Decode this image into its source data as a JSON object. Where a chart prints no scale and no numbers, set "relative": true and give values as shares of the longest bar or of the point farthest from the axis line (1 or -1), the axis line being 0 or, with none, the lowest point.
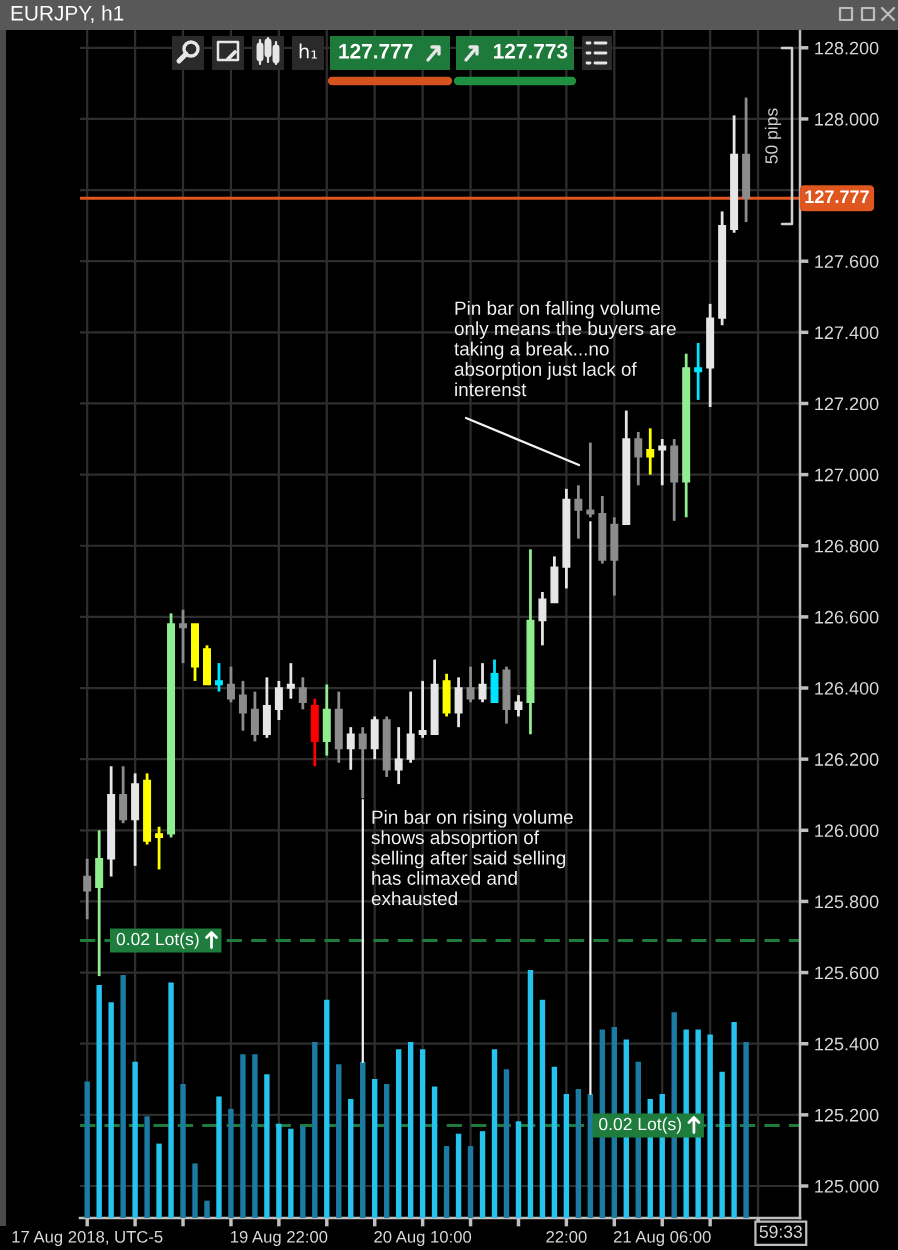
{
  "chart_data": [
    {
      "type": "candlestick",
      "title": "EURJPY, h1",
      "categories": [
        "17 Aug 2018, UTC-5",
        null,
        null,
        null,
        null,
        null,
        null,
        null,
        null,
        null,
        null,
        null,
        null,
        null,
        null,
        null,
        "19 Aug 22:00",
        null,
        null,
        null,
        null,
        null,
        null,
        null,
        null,
        null,
        null,
        null,
        "20 Aug 10:00",
        null,
        null,
        null,
        null,
        null,
        null,
        null,
        null,
        null,
        null,
        null,
        "22:00",
        null,
        null,
        null,
        null,
        null,
        null,
        null,
        "21 Aug 06:00",
        null,
        null,
        null,
        null,
        null,
        null,
        null
      ],
      "ohlc": [
        [
          125.87,
          125.92,
          125.75,
          125.83
        ],
        [
          125.84,
          126.0,
          125.59,
          125.92
        ],
        [
          125.92,
          126.18,
          125.87,
          126.1
        ],
        [
          126.1,
          126.18,
          126.02,
          126.03
        ],
        [
          126.03,
          126.16,
          125.9,
          126.13
        ],
        [
          126.14,
          126.16,
          125.96,
          125.97
        ],
        [
          125.98,
          126.01,
          125.89,
          125.99
        ],
        [
          125.99,
          126.61,
          125.98,
          126.58
        ],
        [
          126.58,
          126.62,
          126.47,
          126.57
        ],
        [
          126.58,
          126.58,
          126.42,
          126.46
        ],
        [
          126.51,
          126.52,
          126.41,
          126.41
        ],
        [
          126.41,
          126.47,
          126.39,
          126.42
        ],
        [
          126.41,
          126.46,
          126.36,
          126.37
        ],
        [
          126.38,
          126.42,
          126.28,
          126.33
        ],
        [
          126.34,
          126.39,
          126.25,
          126.27
        ],
        [
          126.27,
          126.43,
          126.26,
          126.35
        ],
        [
          126.34,
          126.42,
          126.31,
          126.4
        ],
        [
          126.4,
          126.47,
          126.37,
          126.41
        ],
        [
          126.4,
          126.43,
          126.34,
          126.36
        ],
        [
          126.35,
          126.37,
          126.18,
          126.25
        ],
        [
          126.25,
          126.41,
          126.21,
          126.34
        ],
        [
          126.34,
          126.39,
          126.19,
          126.23
        ],
        [
          126.23,
          126.29,
          126.17,
          126.27
        ],
        [
          126.27,
          126.29,
          126.09,
          126.23
        ],
        [
          126.23,
          126.32,
          126.2,
          126.31
        ],
        [
          126.31,
          126.32,
          126.15,
          126.17
        ],
        [
          126.17,
          126.29,
          126.13,
          126.2
        ],
        [
          126.2,
          126.39,
          126.19,
          126.27
        ],
        [
          126.27,
          126.42,
          126.26,
          126.28
        ],
        [
          126.27,
          126.48,
          126.27,
          126.41
        ],
        [
          126.42,
          126.44,
          126.32,
          126.33
        ],
        [
          126.33,
          126.43,
          126.29,
          126.4
        ],
        [
          126.4,
          126.46,
          126.36,
          126.37
        ],
        [
          126.37,
          126.47,
          126.36,
          126.41
        ],
        [
          126.36,
          126.48,
          126.36,
          126.44
        ],
        [
          126.45,
          126.46,
          126.3,
          126.34
        ],
        [
          126.34,
          126.38,
          126.32,
          126.36
        ],
        [
          126.36,
          126.79,
          126.27,
          126.59
        ],
        [
          126.59,
          126.67,
          126.52,
          126.65
        ],
        [
          126.64,
          126.77,
          126.64,
          126.74
        ],
        [
          126.74,
          126.96,
          126.68,
          126.93
        ],
        [
          126.93,
          126.97,
          126.82,
          126.9
        ],
        [
          126.9,
          127.09,
          126.88,
          126.89
        ],
        [
          126.89,
          126.94,
          126.75,
          126.76
        ],
        [
          126.86,
          126.88,
          126.66,
          126.76
        ],
        [
          126.86,
          127.18,
          126.86,
          127.1
        ],
        [
          127.1,
          127.12,
          126.97,
          127.05
        ],
        [
          127.05,
          127.13,
          127.0,
          127.07
        ],
        [
          127.07,
          127.1,
          126.97,
          127.08
        ],
        [
          127.08,
          127.1,
          126.87,
          126.98
        ],
        [
          126.98,
          127.34,
          126.88,
          127.3
        ],
        [
          127.29,
          127.37,
          127.21,
          127.3
        ],
        [
          127.3,
          127.48,
          127.19,
          127.44
        ],
        [
          127.44,
          127.74,
          127.42,
          127.7
        ],
        [
          127.69,
          128.01,
          127.68,
          127.9
        ],
        [
          127.9,
          128.06,
          127.71,
          127.777
        ]
      ],
      "colors": [
        "#8c8c8c",
        "#90ee90",
        "#e6e6e6",
        "#8c8c8c",
        "#e6e6e6",
        "#ffff00",
        "#ffff00",
        "#90ee90",
        "#8c8c8c",
        "#ffff00",
        "#ffff00",
        "#00e5ff",
        "#8c8c8c",
        "#8c8c8c",
        "#8c8c8c",
        "#e6e6e6",
        "#e6e6e6",
        "#e6e6e6",
        "#8c8c8c",
        "#ff0000",
        "#90ee90",
        "#8c8c8c",
        "#e6e6e6",
        "#8c8c8c",
        "#e6e6e6",
        "#8c8c8c",
        "#e6e6e6",
        "#e6e6e6",
        "#e6e6e6",
        "#e6e6e6",
        "#ffff00",
        "#e6e6e6",
        "#8c8c8c",
        "#e6e6e6",
        "#00e5ff",
        "#8c8c8c",
        "#e6e6e6",
        "#90ee90",
        "#e6e6e6",
        "#e6e6e6",
        "#e6e6e6",
        "#8c8c8c",
        "#8c8c8c",
        "#8c8c8c",
        "#8c8c8c",
        "#e6e6e6",
        "#8c8c8c",
        "#ffff00",
        "#e6e6e6",
        "#8c8c8c",
        "#90ee90",
        "#00e5ff",
        "#e6e6e6",
        "#e6e6e6",
        "#e6e6e6",
        "#8c8c8c"
      ],
      "ylim": [
        124.91,
        128.25
      ],
      "yticks": [
        {
          "value": 125.0,
          "label": "125.000"
        },
        {
          "value": 125.2,
          "label": "125.200"
        },
        {
          "value": 125.4,
          "label": "125.400"
        },
        {
          "value": 125.6,
          "label": "125.600"
        },
        {
          "value": 125.8,
          "label": "125.800"
        },
        {
          "value": 126.0,
          "label": "126.000"
        },
        {
          "value": 126.2,
          "label": "126.200"
        },
        {
          "value": 126.4,
          "label": "126.400"
        },
        {
          "value": 126.6,
          "label": "126.600"
        },
        {
          "value": 126.8,
          "label": "126.800"
        },
        {
          "value": 127.0,
          "label": "127.000"
        },
        {
          "value": 127.2,
          "label": "127.200"
        },
        {
          "value": 127.4,
          "label": "127.400"
        },
        {
          "value": 127.6,
          "label": "127.600"
        },
        {
          "value": 127.8,
          "label": null
        },
        {
          "value": 128.0,
          "label": "128.000"
        },
        {
          "value": 128.2,
          "label": "128.200"
        }
      ],
      "grid": true,
      "ref_lines": [
        {
          "axis": "y",
          "value": 127.777,
          "label": "127.777",
          "color": "#e0561f",
          "line_style": "solid"
        },
        {
          "axis": "y",
          "value": 125.69,
          "label": "0.02 Lot(s)",
          "color": "#1e7d3c",
          "line_style": "dashed"
        },
        {
          "axis": "y",
          "value": 125.17,
          "label": "0.02 Lot(s)",
          "color": "#1e7d3c",
          "line_style": "dashed"
        }
      ],
      "annotations": [
        "Pin bar on rising volume\nshows absoprtion of\nselling after said selling\nhas climaxed and\nexhausted",
        "Pin bar on falling volume\nonly means the buyers are\ntaking a break...no\nabsorption just lack of\ninterenst",
        "h₁",
        "127.777",
        "127.773",
        "50 pips",
        "59:33"
      ]
    },
    {
      "type": "bar",
      "relative": true,
      "categories": [
        null,
        null,
        null,
        null,
        null,
        null,
        null,
        null,
        null,
        null,
        null,
        null,
        null,
        null,
        null,
        null,
        null,
        null,
        null,
        null,
        null,
        null,
        null,
        null,
        null,
        null,
        null,
        null,
        null,
        null,
        null,
        null,
        null,
        null,
        null,
        null,
        null,
        null,
        null,
        null,
        null,
        null,
        null,
        null,
        null,
        null,
        null,
        null,
        null,
        null,
        null,
        null,
        null,
        null,
        null,
        null
      ],
      "values": [
        0.55,
        0.94,
        0.87,
        0.98,
        0.63,
        0.41,
        0.3,
        0.95,
        0.54,
        0.22,
        0.07,
        0.49,
        0.44,
        0.66,
        0.66,
        0.58,
        0.38,
        0.36,
        0.37,
        0.71,
        0.88,
        0.62,
        0.48,
        0.63,
        0.56,
        0.54,
        0.68,
        0.71,
        0.68,
        0.53,
        0.29,
        0.34,
        0.29,
        0.35,
        0.68,
        0.6,
        0.39,
        1.0,
        0.88,
        0.61,
        0.5,
        0.52,
        0.5,
        0.76,
        0.77,
        0.72,
        0.63,
        0.48,
        0.5,
        0.83,
        0.76,
        0.76,
        0.74,
        0.59,
        0.79,
        0.71
      ],
      "colors": [
        "#1b7ba3",
        "#27c3ef",
        "#27c3ef",
        "#1b7ba3",
        "#27c3ef",
        "#1b7ba3",
        "#27c3ef",
        "#27c3ef",
        "#1b7ba3",
        "#1b7ba3",
        "#1b7ba3",
        "#27c3ef",
        "#1b7ba3",
        "#1b7ba3",
        "#1b7ba3",
        "#27c3ef",
        "#27c3ef",
        "#27c3ef",
        "#1b7ba3",
        "#1b7ba3",
        "#27c3ef",
        "#1b7ba3",
        "#27c3ef",
        "#1b7ba3",
        "#27c3ef",
        "#1b7ba3",
        "#27c3ef",
        "#27c3ef",
        "#27c3ef",
        "#27c3ef",
        "#1b7ba3",
        "#27c3ef",
        "#1b7ba3",
        "#27c3ef",
        "#27c3ef",
        "#1b7ba3",
        "#27c3ef",
        "#27c3ef",
        "#27c3ef",
        "#27c3ef",
        "#27c3ef",
        "#1b7ba3",
        "#1b7ba3",
        "#1b7ba3",
        "#1b7ba3",
        "#27c3ef",
        "#1b7ba3",
        "#27c3ef",
        "#27c3ef",
        "#1b7ba3",
        "#27c3ef",
        "#27c3ef",
        "#27c3ef",
        "#27c3ef",
        "#27c3ef",
        "#1b7ba3"
      ]
    }
  ]
}
